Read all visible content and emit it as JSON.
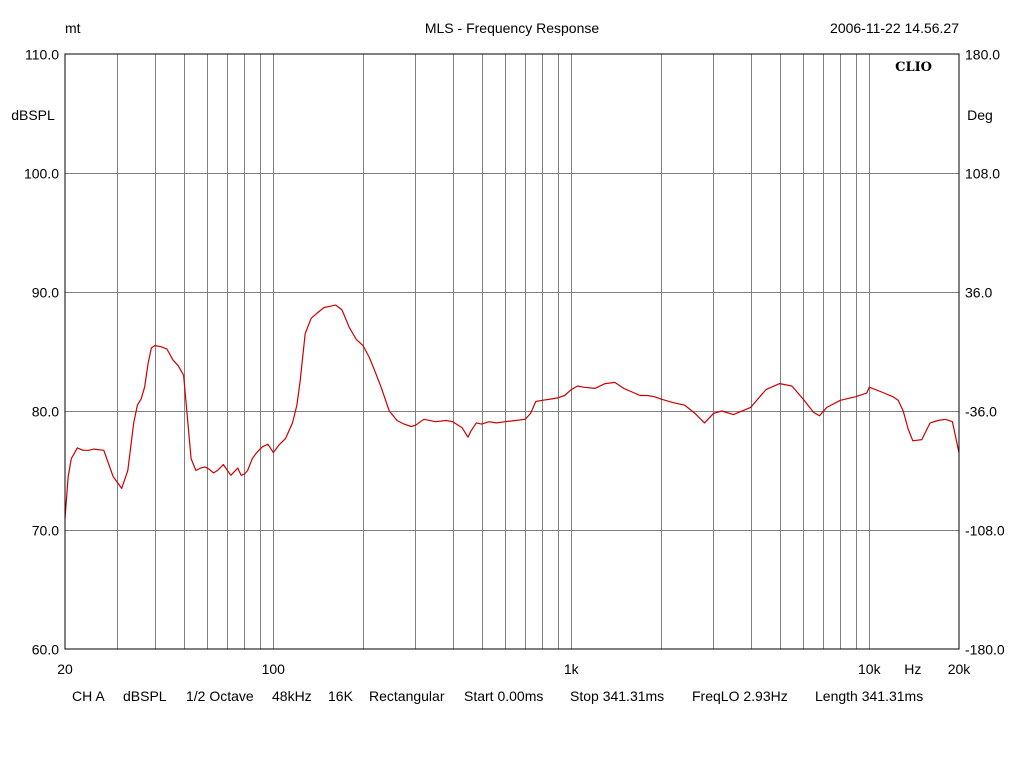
{
  "header": {
    "left": "mt",
    "title": "MLS - Frequency Response",
    "timestamp": "2006-11-22 14.56.27"
  },
  "brand": "CLIO",
  "footer": {
    "items": [
      "CH A",
      "dBSPL",
      "1/2 Octave",
      "48kHz",
      "16K",
      "Rectangular",
      "Start 0.00ms",
      "Stop 341.31ms",
      "FreqLO 2.93Hz",
      "Length 341.31ms"
    ]
  },
  "colors": {
    "curve": "#cc0000",
    "grid": "#808080"
  },
  "chart_data": {
    "type": "line",
    "title": "MLS - Frequency Response",
    "xscale": "log",
    "xlim": [
      20,
      20000
    ],
    "ylim": [
      60,
      110
    ],
    "ylabel": "dBSPL",
    "y2label": "Deg",
    "y2lim": [
      -180,
      180
    ],
    "yticks": [
      "110.0",
      "100.0",
      "90.0",
      "80.0",
      "70.0",
      "60.0"
    ],
    "y2ticks": [
      "180.0",
      "108.0",
      "36.0",
      "-36.0",
      "-108.0",
      "-180.0"
    ],
    "xticks": [
      {
        "value": 20,
        "label": "20"
      },
      {
        "value": 100,
        "label": "100"
      },
      {
        "value": 1000,
        "label": "1k"
      },
      {
        "value": 10000,
        "label": "10k"
      },
      {
        "value": 14000,
        "label": "Hz"
      },
      {
        "value": 20000,
        "label": "20k"
      }
    ],
    "grid": true,
    "series": [
      {
        "x": [
          20,
          20.5,
          21,
          22,
          23,
          24,
          25,
          27,
          29,
          31,
          32.5,
          34,
          35,
          36,
          37,
          38,
          39,
          40,
          42,
          44,
          46,
          48,
          50,
          53,
          55,
          57,
          59,
          61,
          63,
          65,
          68,
          72,
          76,
          78,
          80,
          82,
          85,
          88,
          92,
          96,
          100,
          105,
          110,
          116,
          120,
          123,
          128,
          134,
          140,
          148,
          155,
          162,
          170,
          180,
          190,
          200,
          205,
          210,
          218,
          230,
          245,
          260,
          275,
          290,
          300,
          320,
          350,
          380,
          400,
          430,
          450,
          460,
          480,
          500,
          530,
          560,
          600,
          650,
          700,
          730,
          760,
          800,
          850,
          900,
          950,
          1000,
          1050,
          1100,
          1200,
          1300,
          1400,
          1500,
          1600,
          1700,
          1800,
          1900,
          2000,
          2200,
          2400,
          2600,
          2800,
          3000,
          3200,
          3500,
          4000,
          4500,
          5000,
          5500,
          6000,
          6500,
          6800,
          7200,
          8000,
          9000,
          9800,
          10000,
          11000,
          12000,
          12500,
          13000,
          13500,
          14000,
          15000,
          16000,
          17000,
          18000,
          19000,
          20000
        ],
        "values": [
          71.0,
          74.5,
          76.0,
          76.9,
          76.7,
          76.7,
          76.8,
          76.7,
          74.5,
          73.5,
          75.0,
          79.0,
          80.5,
          81.0,
          82.0,
          84.0,
          85.3,
          85.5,
          85.4,
          85.2,
          84.3,
          83.8,
          83.0,
          76.0,
          75.0,
          75.2,
          75.3,
          75.1,
          74.8,
          75.0,
          75.5,
          74.6,
          75.2,
          74.6,
          74.7,
          75.0,
          76.0,
          76.5,
          77.0,
          77.2,
          76.5,
          77.2,
          77.7,
          79.0,
          80.5,
          82.5,
          86.5,
          87.8,
          88.2,
          88.7,
          88.8,
          88.9,
          88.5,
          87.0,
          86.0,
          85.5,
          85.0,
          84.5,
          83.5,
          82.0,
          80.0,
          79.2,
          78.9,
          78.7,
          78.8,
          79.3,
          79.1,
          79.2,
          79.1,
          78.6,
          77.8,
          78.3,
          79.0,
          78.9,
          79.1,
          79.0,
          79.1,
          79.2,
          79.3,
          79.8,
          80.8,
          80.9,
          81.0,
          81.1,
          81.3,
          81.8,
          82.1,
          82.0,
          81.9,
          82.3,
          82.4,
          81.9,
          81.6,
          81.3,
          81.3,
          81.2,
          81.0,
          80.7,
          80.5,
          79.8,
          79.0,
          79.8,
          80.0,
          79.7,
          80.3,
          81.8,
          82.3,
          82.1,
          81.0,
          79.9,
          79.6,
          80.3,
          80.9,
          81.2,
          81.5,
          82.0,
          81.6,
          81.2,
          80.9,
          80.0,
          78.5,
          77.5,
          77.6,
          79.0,
          79.2,
          79.3,
          79.1,
          76.5
        ]
      }
    ]
  }
}
